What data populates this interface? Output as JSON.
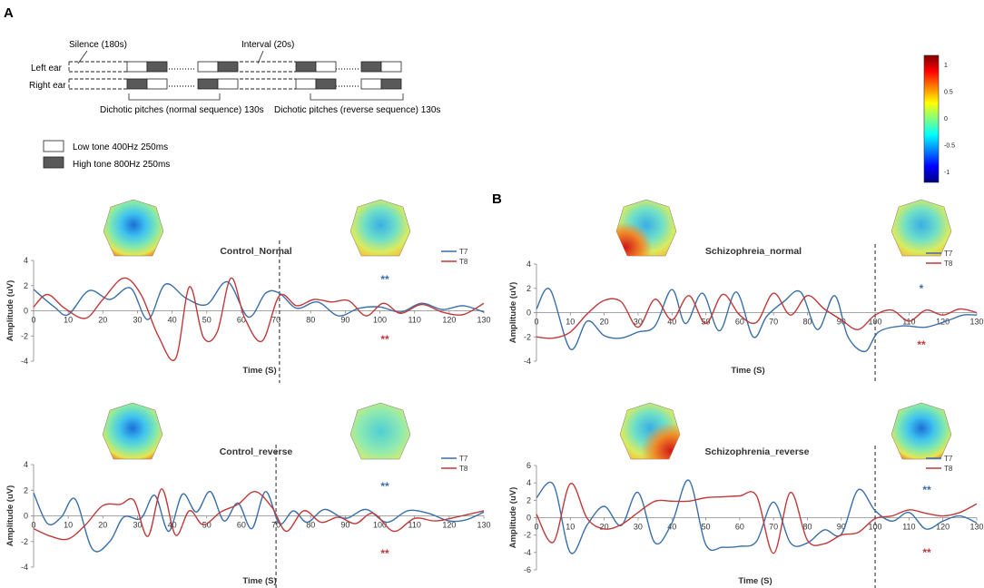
{
  "panel_a": {
    "label": "A",
    "silence_label": "Silence (180s)",
    "interval_label": "Interval (20s)",
    "left_ear_label": "Left ear",
    "right_ear_label": "Right ear",
    "normal_seq_label": "Dichotic pitches (normal sequence) 130s",
    "reverse_seq_label": "Dichotic pitches (reverse sequence) 130s",
    "low_tone_label": "Low tone 400Hz 250ms",
    "high_tone_label": "High tone 800Hz 250ms",
    "colors": {
      "low_tone": "#ffffff",
      "high_tone": "#595959"
    }
  },
  "panel_b": {
    "label": "B"
  },
  "colorbar": {
    "ticks": [
      "1",
      "0.5",
      "0",
      "-0.5",
      "-1"
    ],
    "colors": [
      "#800000",
      "#ff0000",
      "#ff8000",
      "#ffff00",
      "#80ff80",
      "#00ffff",
      "#0080ff",
      "#0000ff",
      "#000080"
    ]
  },
  "series_colors": {
    "T7": "#3a6fa8",
    "T8": "#c0393b"
  },
  "chart_data": [
    {
      "type": "line",
      "title": "Control_Normal",
      "xlabel": "Time (S)",
      "ylabel": "Amplitude (uV)",
      "xlim": [
        0,
        130
      ],
      "ylim": [
        -4,
        4
      ],
      "x_ticks": [
        0,
        10,
        20,
        30,
        40,
        50,
        60,
        70,
        80,
        90,
        100,
        110,
        120,
        130
      ],
      "y_ticks": [
        4,
        2,
        0,
        -2,
        -4
      ],
      "legend": [
        "T7",
        "T8"
      ],
      "divider_x": 71,
      "t7_sig": "**",
      "t8_sig": "**",
      "series": [
        {
          "name": "T7",
          "x": [
            0,
            6,
            10,
            16,
            22,
            28,
            33,
            38,
            44,
            50,
            56,
            62,
            67,
            71,
            76,
            82,
            88,
            94,
            100,
            106,
            112,
            118,
            124,
            130
          ],
          "y": [
            1.7,
            0.3,
            -0.3,
            1.6,
            0.9,
            1.8,
            -0.7,
            2.1,
            1.0,
            0.5,
            2.3,
            -0.5,
            1.4,
            1.4,
            0.2,
            0.7,
            -0.4,
            0.2,
            0.3,
            -0.1,
            0.6,
            0.1,
            0.4,
            -0.1
          ]
        },
        {
          "name": "T8",
          "x": [
            0,
            4,
            9,
            15,
            20,
            26,
            31,
            36,
            41,
            45,
            49,
            53,
            57,
            61,
            66,
            71,
            76,
            81,
            86,
            91,
            96,
            101,
            106,
            112,
            118,
            124,
            130
          ],
          "y": [
            0.3,
            1.3,
            0.2,
            -0.6,
            0.9,
            2.6,
            1.3,
            -2.0,
            -3.8,
            1.9,
            -2.1,
            -1.7,
            2.6,
            -0.6,
            -2.4,
            1.2,
            0.4,
            0.9,
            0.7,
            0.8,
            -0.4,
            0.6,
            -0.2,
            0.5,
            -0.1,
            -0.3,
            0.6
          ]
        }
      ]
    },
    {
      "type": "line",
      "title": "Schizophreia_normal",
      "xlabel": "Time (S)",
      "ylabel": "Amplitude (uV)",
      "xlim": [
        0,
        130
      ],
      "ylim": [
        -4,
        4
      ],
      "x_ticks": [
        0,
        10,
        20,
        30,
        40,
        50,
        60,
        70,
        80,
        90,
        100,
        110,
        120,
        130
      ],
      "y_ticks": [
        4,
        2,
        0,
        -2,
        -4
      ],
      "legend": [
        "T7",
        "T8"
      ],
      "divider_x": 100,
      "t7_sig": "*",
      "t8_sig": "**",
      "series": [
        {
          "name": "T7",
          "x": [
            0,
            4,
            10,
            15,
            20,
            25,
            30,
            35,
            40,
            44,
            49,
            54,
            59,
            64,
            68,
            73,
            78,
            83,
            88,
            92,
            97,
            101,
            108,
            115,
            122,
            126,
            130
          ],
          "y": [
            0.3,
            1.9,
            -3.0,
            -0.7,
            -1.9,
            -2.1,
            -1.6,
            -1.1,
            1.9,
            -0.9,
            1.6,
            -1.5,
            1.7,
            -2.0,
            -0.3,
            0.9,
            1.7,
            -1.4,
            1.4,
            -2.0,
            -3.2,
            -1.6,
            -1.1,
            -1.2,
            -0.6,
            -0.2,
            -0.2
          ]
        },
        {
          "name": "T8",
          "x": [
            0,
            5,
            10,
            15,
            20,
            25,
            30,
            35,
            40,
            45,
            50,
            55,
            60,
            65,
            70,
            75,
            80,
            85,
            90,
            95,
            100,
            105,
            110,
            115,
            120,
            125,
            130
          ],
          "y": [
            -2.0,
            -2.1,
            -1.6,
            -0.1,
            1.0,
            0.9,
            -1.2,
            1.1,
            -0.6,
            1.4,
            -0.9,
            1.5,
            -0.2,
            -0.8,
            1.6,
            -0.2,
            1.4,
            0.3,
            -0.6,
            -1.4,
            -0.2,
            0.2,
            -0.7,
            0.2,
            -0.2,
            0.3,
            0.0
          ]
        }
      ]
    },
    {
      "type": "line",
      "title": "Control_reverse",
      "xlabel": "Time (S)",
      "ylabel": "Amplitude (uV)",
      "xlim": [
        0,
        130
      ],
      "ylim": [
        -4,
        4
      ],
      "x_ticks": [
        0,
        10,
        20,
        30,
        40,
        50,
        60,
        70,
        80,
        90,
        100,
        110,
        120,
        130
      ],
      "y_ticks": [
        4,
        2,
        0,
        -2,
        -4
      ],
      "legend": [
        "T7",
        "T8"
      ],
      "divider_x": 70,
      "t7_sig": "**",
      "t8_sig": "**",
      "series": [
        {
          "name": "T7",
          "x": [
            0,
            4,
            8,
            12,
            17,
            22,
            26,
            31,
            35,
            39,
            43,
            47,
            51,
            55,
            59,
            63,
            67,
            71,
            75,
            79,
            84,
            90,
            96,
            102,
            108,
            114,
            120,
            125,
            130
          ],
          "y": [
            1.8,
            -0.6,
            -0.1,
            1.3,
            -2.6,
            -2.0,
            -0.1,
            -0.2,
            1.6,
            -1.2,
            1.7,
            0.3,
            1.9,
            -0.4,
            1.0,
            -1.0,
            1.9,
            -0.6,
            0.4,
            -0.5,
            0.5,
            -0.2,
            0.5,
            -0.5,
            0.4,
            0.2,
            -0.4,
            -0.3,
            0.3
          ]
        },
        {
          "name": "T8",
          "x": [
            0,
            5,
            10,
            15,
            20,
            25,
            29,
            33,
            37,
            41,
            45,
            49,
            54,
            59,
            64,
            69,
            73,
            78,
            83,
            88,
            93,
            98,
            104,
            110,
            116,
            122,
            130
          ],
          "y": [
            -1.0,
            -1.6,
            -1.8,
            -0.7,
            0.8,
            0.9,
            1.2,
            -1.6,
            2.1,
            -1.5,
            0.4,
            -0.7,
            0.3,
            0.9,
            1.9,
            0.6,
            -1.2,
            0.4,
            -0.5,
            -0.1,
            -0.6,
            0.2,
            -1.2,
            -0.2,
            -0.4,
            -0.1,
            0.4
          ]
        }
      ]
    },
    {
      "type": "line",
      "title": "Schizophrenia_reverse",
      "xlabel": "Time (S)",
      "ylabel": "Amplitude (uV)",
      "xlim": [
        0,
        130
      ],
      "ylim": [
        -6,
        6
      ],
      "x_ticks": [
        0,
        10,
        20,
        30,
        40,
        50,
        60,
        70,
        80,
        90,
        100,
        110,
        120,
        130
      ],
      "y_ticks": [
        6,
        4,
        2,
        0,
        -2,
        -4,
        -6
      ],
      "legend": [
        "T7",
        "T8"
      ],
      "divider_x": 100,
      "t7_sig": "**",
      "t8_sig": "**",
      "series": [
        {
          "name": "T7",
          "x": [
            0,
            5,
            10,
            15,
            20,
            25,
            30,
            35,
            40,
            45,
            50,
            55,
            60,
            65,
            70,
            75,
            80,
            85,
            90,
            95,
            100,
            105,
            110,
            115,
            120,
            125,
            130
          ],
          "y": [
            2.3,
            3.8,
            -4.0,
            -0.8,
            1.3,
            -0.9,
            2.9,
            -2.9,
            -0.6,
            4.3,
            -3.1,
            -3.4,
            -3.3,
            -2.7,
            1.8,
            -2.9,
            -2.9,
            -1.4,
            -1.9,
            3.2,
            0.8,
            -0.4,
            0.6,
            -1.3,
            -0.4,
            0.2,
            -0.6
          ]
        },
        {
          "name": "T8",
          "x": [
            0,
            5,
            10,
            15,
            20,
            25,
            30,
            35,
            40,
            45,
            50,
            55,
            60,
            65,
            70,
            75,
            80,
            85,
            90,
            95,
            100,
            105,
            110,
            115,
            120,
            125,
            130
          ],
          "y": [
            0.4,
            -2.8,
            3.9,
            -0.1,
            -1.3,
            -0.8,
            0.6,
            1.9,
            1.9,
            1.9,
            2.3,
            2.4,
            2.5,
            2.5,
            -4.1,
            2.9,
            -2.6,
            -3.0,
            -2.0,
            -1.7,
            -0.1,
            0.2,
            0.9,
            0.5,
            0.2,
            0.6,
            1.6
          ]
        }
      ]
    }
  ]
}
